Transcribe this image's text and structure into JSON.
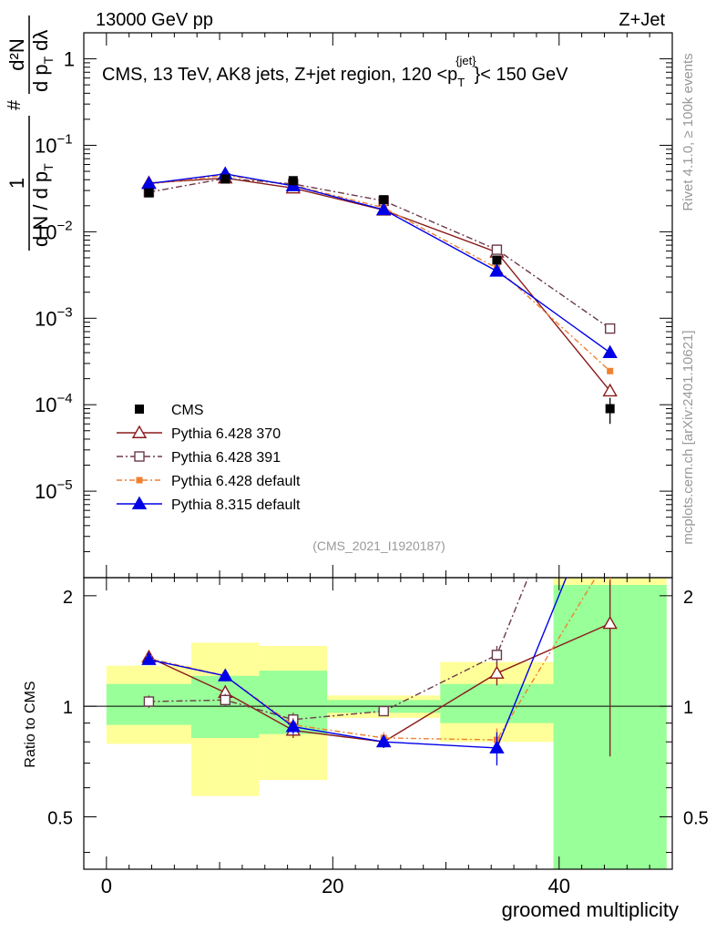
{
  "header": {
    "left": "13000 GeV pp",
    "right": "Z+Jet"
  },
  "side_labels": {
    "top": "Rivet 4.1.0, ≥ 100k events",
    "bottom": "mcplots.cern.ch [arXiv:2401.10621]"
  },
  "watermark": "(CMS_2021_I1920187)",
  "chart_data": {
    "type": "line",
    "title": "CMS, 13 TeV, AK8 jets, Z+jet region, 120 <p_T^{jet}< 150 GeV",
    "title_parts": {
      "prefix": "CMS, 13 TeV, AK8 jets, Z+jet region, 120 <p",
      "sub": "T",
      "sup": "{jet}",
      "suffix": "}< 150 GeV"
    },
    "xlabel": "groomed multiplicity",
    "ylabel": "1/dN/dp_T # d²N/dp_T dλ",
    "ylabel_parts": {
      "num_one": "1",
      "den": "d N / d p",
      "den_sub": "T",
      "hash": "#",
      "num2": "d²N",
      "den2": "d p",
      "den2_sub": "T",
      "den2_tail": "dλ"
    },
    "ratio_ylabel": "Ratio to CMS",
    "xlim": [
      -2,
      50
    ],
    "ylim": [
      1e-06,
      2
    ],
    "ratio_ylim": [
      0.36,
      2.24
    ],
    "xticks": [
      0,
      20,
      40
    ],
    "yticks": [
      {
        "value": 1,
        "label": "1"
      },
      {
        "value": 0.1,
        "label": "10",
        "exp": "−1"
      },
      {
        "value": 0.01,
        "label": "10",
        "exp": "−2"
      },
      {
        "value": 0.001,
        "label": "10",
        "exp": "−3"
      },
      {
        "value": 0.0001,
        "label": "10",
        "exp": "−4"
      },
      {
        "value": 1e-05,
        "label": "10",
        "exp": "−5"
      }
    ],
    "ratio_yticks": [
      0.5,
      1,
      2
    ],
    "bins": [
      [
        0,
        7.5
      ],
      [
        7.5,
        13.5
      ],
      [
        13.5,
        19.5
      ],
      [
        19.5,
        29.5
      ],
      [
        29.5,
        39.5
      ],
      [
        39.5,
        49.5
      ]
    ],
    "x": [
      3.75,
      10.5,
      16.5,
      24.5,
      34.5,
      44.5
    ],
    "data": {
      "name": "CMS",
      "values": [
        0.0282,
        0.0408,
        0.039,
        0.0235,
        0.0047,
        9e-05
      ],
      "errors": [
        0.0012,
        0.0012,
        0.0012,
        0.0008,
        0.0004,
        3e-05
      ]
    },
    "bands": {
      "green": [
        [
          0.89,
          1.15
        ],
        [
          0.82,
          1.21
        ],
        [
          0.84,
          1.25
        ],
        [
          0.96,
          1.04
        ],
        [
          0.9,
          1.15
        ],
        [
          0.3,
          2.14
        ]
      ],
      "yellow": [
        [
          0.79,
          1.29
        ],
        [
          0.57,
          1.49
        ],
        [
          0.63,
          1.46
        ],
        [
          0.93,
          1.07
        ],
        [
          0.8,
          1.32
        ],
        [
          0.3,
          2.3
        ]
      ]
    },
    "series": [
      {
        "name": "Pythia 6.428 370",
        "color": "#8b1a1a",
        "marker": "triangle-open",
        "dash": "solid",
        "values": [
          0.0367,
          0.0418,
          0.032,
          0.0178,
          0.0058,
          0.000144
        ],
        "ratio": [
          1.36,
          1.09,
          0.86,
          0.8,
          1.23,
          1.68
        ],
        "ratio_err": [
          0.05,
          0.05,
          0.04,
          0.03,
          0.09,
          0.95
        ]
      },
      {
        "name": "Pythia 6.428 391",
        "color": "#6b3a4a",
        "marker": "square-open",
        "dash": "7,3,2,3",
        "values": [
          0.0287,
          0.0414,
          0.0357,
          0.0228,
          0.0062,
          0.00076
        ],
        "ratio": [
          1.03,
          1.04,
          0.92,
          0.97,
          1.38,
          8.0
        ],
        "ratio_err": [
          0.04,
          0.04,
          0.04,
          0.03,
          0.08,
          0.5
        ]
      },
      {
        "name": "Pythia 6.428 default",
        "color": "#f08030",
        "marker": "square-filled-small",
        "dash": "6,3,2,3",
        "values": [
          0.0355,
          0.045,
          0.0345,
          0.019,
          0.0038,
          0.000245
        ],
        "ratio": [
          1.35,
          1.21,
          0.89,
          0.82,
          0.81,
          2.6
        ],
        "ratio_err": [
          0.04,
          0.04,
          0.04,
          0.03,
          0.06,
          0.4
        ]
      },
      {
        "name": "Pythia 8.315 default",
        "color": "#0000e6",
        "marker": "triangle-filled",
        "dash": "solid",
        "values": [
          0.036,
          0.0467,
          0.034,
          0.018,
          0.0035,
          0.0004
        ],
        "ratio": [
          1.34,
          1.21,
          0.88,
          0.8,
          0.77,
          4.4
        ],
        "ratio_err": [
          0.04,
          0.04,
          0.04,
          0.03,
          0.08,
          0.5
        ]
      }
    ]
  }
}
